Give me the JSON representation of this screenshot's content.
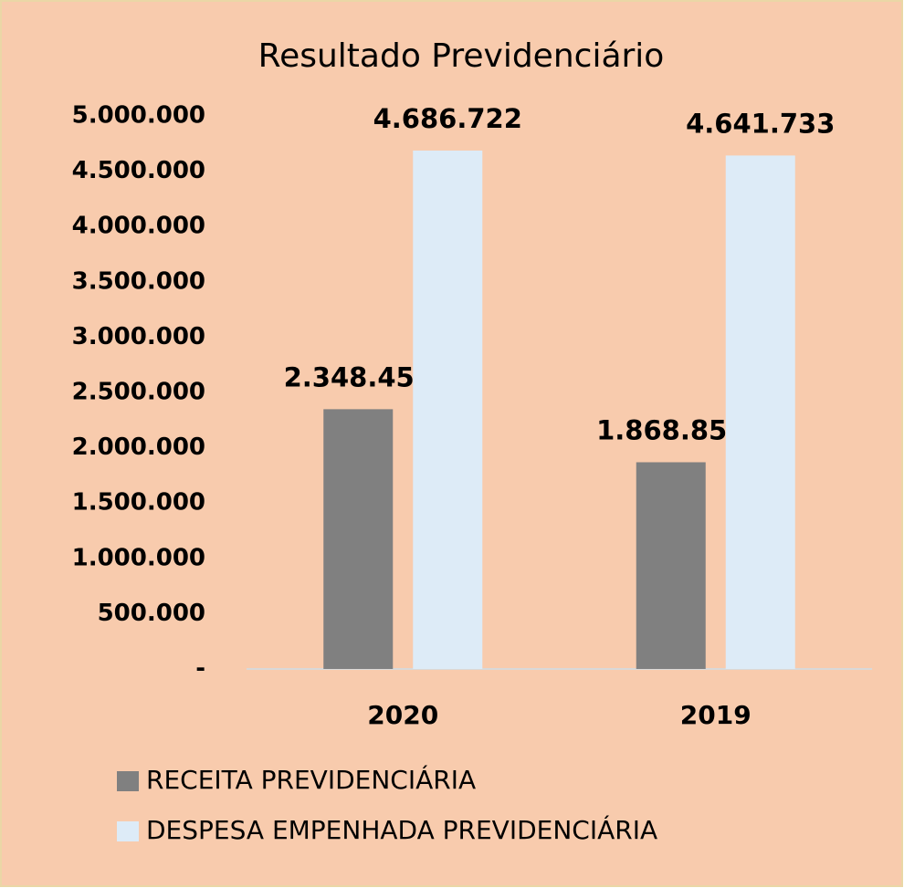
{
  "chart_data": {
    "type": "bar",
    "title": "Resultado Previdenciário",
    "categories": [
      "2020",
      "2019"
    ],
    "series": [
      {
        "name": "RECEITA PREVIDENCIÁRIA",
        "color": "#808080",
        "values": [
          2348457,
          1868851
        ],
        "value_labels": [
          "2.348.457",
          "1.868.851"
        ]
      },
      {
        "name": "DESPESA EMPENHADA PREVIDENCIÁRIA",
        "color": "#ddebf7",
        "values": [
          4686722,
          4641733
        ],
        "value_labels": [
          "4.686.722",
          "4.641.733"
        ]
      }
    ],
    "ylim": [
      0,
      5000000
    ],
    "yticks": [
      {
        "value": 0,
        "label": "-"
      },
      {
        "value": 500000,
        "label": "500.000"
      },
      {
        "value": 1000000,
        "label": "1.000.000"
      },
      {
        "value": 1500000,
        "label": "1.500.000"
      },
      {
        "value": 2000000,
        "label": "2.000.000"
      },
      {
        "value": 2500000,
        "label": "2.500.000"
      },
      {
        "value": 3000000,
        "label": "3.000.000"
      },
      {
        "value": 3500000,
        "label": "3.500.000"
      },
      {
        "value": 4000000,
        "label": "4.000.000"
      },
      {
        "value": 4500000,
        "label": "4.500.000"
      },
      {
        "value": 5000000,
        "label": "5.000.000"
      }
    ],
    "grid": false,
    "legend": "bottom"
  }
}
